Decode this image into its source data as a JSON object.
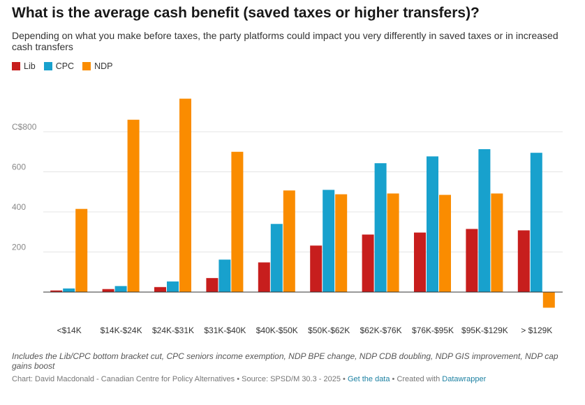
{
  "title": "What is the average cash benefit (saved taxes or higher transfers)?",
  "subtitle": "Depending on what you make before taxes, the party platforms could impact you very differently in saved taxes or in increased cash transfers",
  "notes": "Includes the Lib/CPC bottom bracket cut, CPC seniors income exemption, NDP BPE change, NDP CDB doubling, NDP GIS improvement, NDP cap gains boost",
  "footer": {
    "prefix": "Chart: David Macdonald - Canadian Centre for Policy Alternatives • Source: SPSD/M 30.3 - 2025 • ",
    "data_link": "Get the data",
    "middle": " • Created with ",
    "tool_link": "Datawrapper"
  },
  "chart_data": {
    "type": "bar",
    "categories": [
      "<$14K",
      "$14K-$24K",
      "$24K-$31K",
      "$31K-$40K",
      "$40K-$50K",
      "$50K-$62K",
      "$62K-$76K",
      "$76K-$95K",
      "$95K-$129K",
      "> $129K"
    ],
    "series": [
      {
        "name": "Lib",
        "color": "#c71e1d",
        "values": [
          8,
          15,
          25,
          70,
          148,
          232,
          287,
          297,
          315,
          308
        ]
      },
      {
        "name": "CPC",
        "color": "#18a1cd",
        "values": [
          18,
          30,
          53,
          162,
          340,
          510,
          643,
          677,
          713,
          695
        ]
      },
      {
        "name": "NDP",
        "color": "#fa8c00",
        "values": [
          415,
          860,
          965,
          700,
          507,
          488,
          492,
          485,
          492,
          -78
        ]
      }
    ],
    "yticks": [
      {
        "value": 200,
        "label": "200"
      },
      {
        "value": 400,
        "label": "400"
      },
      {
        "value": 600,
        "label": "600"
      },
      {
        "value": 800,
        "label": "C$800"
      }
    ],
    "ylim": [
      -100,
      1000
    ],
    "grid": true,
    "legend_position": "top-left"
  }
}
